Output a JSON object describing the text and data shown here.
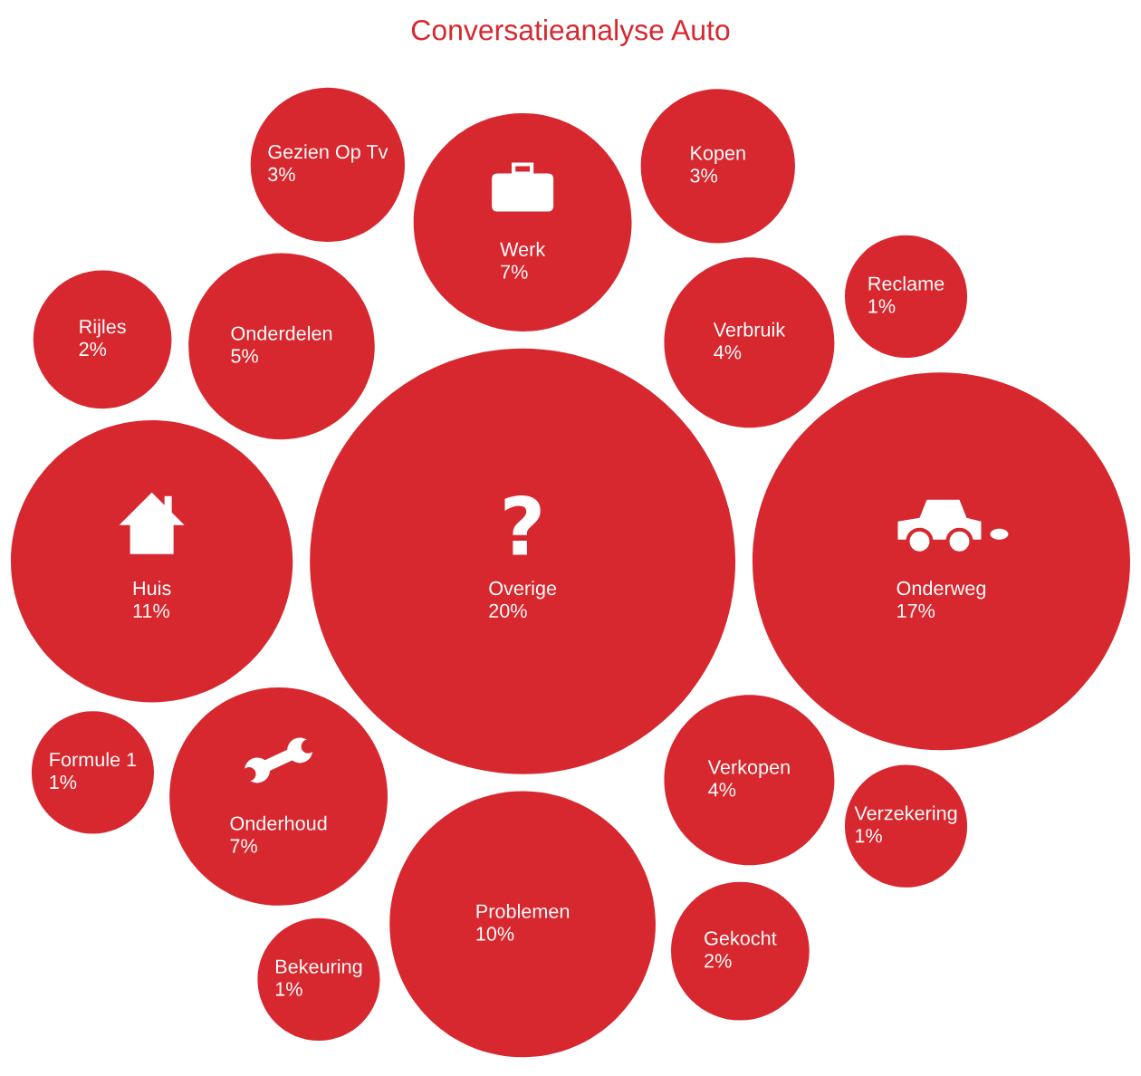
{
  "chart_data": {
    "type": "other",
    "title": "Conversatieanalyse Auto",
    "categories": [
      "Verkopen",
      "Overige",
      "Problemen",
      "Verzekering",
      "Rijles",
      "Verbruik",
      "Onderweg",
      "Kopen",
      "Reclame",
      "Huis",
      "Onderdelen",
      "Gezien Op Tv",
      "Gekocht",
      "Werk",
      "Onderhoud",
      "Formule 1",
      "Bekeuring"
    ],
    "values": [
      4,
      20,
      10,
      1,
      2,
      4,
      17,
      3,
      1,
      11,
      5,
      3,
      2,
      7,
      7,
      1,
      1
    ],
    "value_labels": [
      "4%",
      "20%",
      "10%",
      "1%",
      "2%",
      "4%",
      "17%",
      "3%",
      "1%",
      "11%",
      "5%",
      "3%",
      "2%",
      "7%",
      "7%",
      "1%",
      "1%"
    ],
    "color": "#d7282f"
  }
}
